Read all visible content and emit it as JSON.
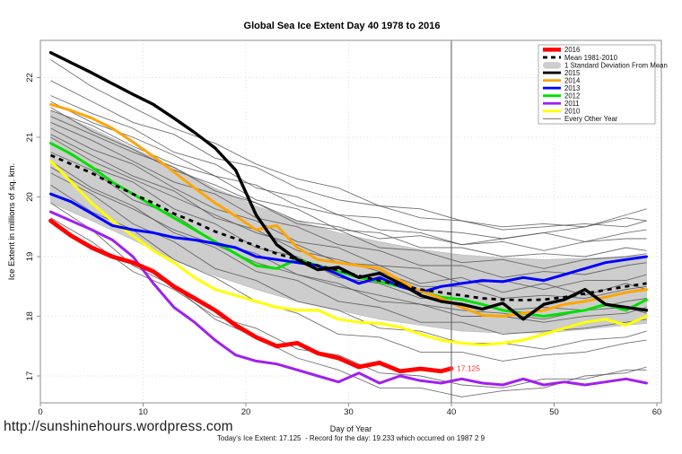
{
  "page": {
    "url_text": "http://sunshinehours.wordpress.com",
    "note": "Today's Ice Extent: 17.125  - Record for the day: 19.233 which occurred on 1987 2 9"
  },
  "chart_data": {
    "type": "line",
    "title": "Global Sea Ice Extent Day 40 1978 to 2016",
    "xlabel": "Day of Year",
    "ylabel": "Ice Extent in millions of sq. km.",
    "xlim": [
      0,
      60
    ],
    "ylim": [
      16.5,
      22.6
    ],
    "xticks": [
      0,
      10,
      20,
      30,
      40,
      50,
      60
    ],
    "yticks": [
      17,
      18,
      19,
      20,
      21,
      22
    ],
    "grid": "dotted",
    "grid_color": "#dddddd",
    "axis_color": "#8f8f8f",
    "vline": {
      "x": 40,
      "color": "#5a5a5a"
    },
    "annotation": {
      "x": 40,
      "y": 17.125,
      "label": "17.125",
      "color": "#ff3030"
    },
    "band": {
      "name": "1 Standard Deviation From Mean",
      "color": "#cdcdcd",
      "days": [
        1,
        5,
        9,
        13,
        17,
        21,
        25,
        29,
        33,
        37,
        41,
        45,
        49,
        53,
        57,
        59
      ],
      "upper": [
        21.45,
        21.15,
        20.82,
        20.5,
        20.15,
        19.85,
        19.6,
        19.4,
        19.25,
        19.12,
        19.03,
        18.98,
        18.95,
        18.97,
        19.0,
        19.02
      ],
      "lower": [
        19.9,
        19.6,
        19.28,
        18.95,
        18.68,
        18.45,
        18.25,
        18.1,
        17.95,
        17.85,
        17.75,
        17.72,
        17.72,
        17.78,
        17.85,
        17.88
      ]
    },
    "mean": {
      "name": "Mean 1981-2010",
      "color": "#000000",
      "style": "dashed",
      "days": [
        1,
        3,
        5,
        7,
        9,
        11,
        13,
        15,
        17,
        19,
        21,
        23,
        25,
        27,
        29,
        31,
        33,
        35,
        37,
        39,
        41,
        43,
        45,
        47,
        49,
        51,
        53,
        55,
        57,
        59
      ],
      "values": [
        20.7,
        20.55,
        20.4,
        20.22,
        20.05,
        19.9,
        19.72,
        19.58,
        19.42,
        19.3,
        19.18,
        19.05,
        18.95,
        18.85,
        18.77,
        18.68,
        18.6,
        18.52,
        18.45,
        18.4,
        18.35,
        18.3,
        18.28,
        18.27,
        18.28,
        18.32,
        18.38,
        18.44,
        18.5,
        18.55
      ]
    },
    "series": [
      {
        "name": "2010",
        "color": "#ffff00",
        "width": 3,
        "days": [
          1,
          3,
          5,
          7,
          9,
          11,
          13,
          15,
          17,
          19,
          21,
          23,
          25,
          27,
          29,
          31,
          33,
          35,
          37,
          39,
          41,
          43,
          45,
          47,
          49,
          51,
          53,
          55,
          57,
          59
        ],
        "values": [
          20.6,
          20.25,
          19.9,
          19.6,
          19.35,
          19.1,
          18.9,
          18.65,
          18.45,
          18.35,
          18.25,
          18.15,
          18.1,
          18.1,
          17.95,
          17.9,
          17.88,
          17.82,
          17.7,
          17.6,
          17.55,
          17.52,
          17.55,
          17.6,
          17.7,
          17.8,
          17.9,
          17.95,
          17.85,
          18.0
        ]
      },
      {
        "name": "2011",
        "color": "#a020f0",
        "width": 3,
        "days": [
          1,
          3,
          5,
          7,
          9,
          11,
          13,
          15,
          17,
          19,
          21,
          23,
          25,
          27,
          29,
          31,
          33,
          35,
          37,
          39,
          41,
          43,
          45,
          47,
          49,
          51,
          53,
          55,
          57,
          59
        ],
        "values": [
          19.75,
          19.6,
          19.45,
          19.28,
          19.0,
          18.55,
          18.15,
          17.9,
          17.6,
          17.35,
          17.25,
          17.2,
          17.1,
          17.0,
          16.9,
          17.05,
          16.88,
          17.0,
          16.92,
          16.88,
          16.95,
          16.88,
          16.85,
          16.95,
          16.85,
          16.9,
          16.85,
          16.9,
          16.95,
          16.88
        ]
      },
      {
        "name": "2012",
        "color": "#00e000",
        "width": 3,
        "days": [
          1,
          3,
          5,
          7,
          9,
          11,
          13,
          15,
          17,
          19,
          21,
          23,
          25,
          27,
          29,
          31,
          33,
          35,
          37,
          39,
          41,
          43,
          45,
          47,
          49,
          51,
          53,
          55,
          57,
          59
        ],
        "values": [
          20.9,
          20.72,
          20.5,
          20.25,
          20.05,
          19.85,
          19.65,
          19.45,
          19.25,
          19.05,
          18.85,
          18.8,
          18.95,
          18.85,
          18.75,
          18.65,
          18.58,
          18.5,
          18.42,
          18.32,
          18.28,
          18.2,
          18.1,
          18.05,
          18.0,
          18.05,
          18.1,
          18.2,
          18.1,
          18.28
        ]
      },
      {
        "name": "2013",
        "color": "#0000ff",
        "width": 3,
        "days": [
          1,
          3,
          5,
          7,
          9,
          11,
          13,
          15,
          17,
          19,
          21,
          23,
          25,
          27,
          29,
          31,
          33,
          35,
          37,
          39,
          41,
          43,
          45,
          47,
          49,
          51,
          53,
          55,
          57,
          59
        ],
        "values": [
          20.05,
          19.92,
          19.72,
          19.52,
          19.45,
          19.4,
          19.32,
          19.28,
          19.22,
          19.15,
          19.0,
          18.95,
          18.9,
          18.85,
          18.7,
          18.55,
          18.65,
          18.5,
          18.4,
          18.5,
          18.55,
          18.6,
          18.58,
          18.65,
          18.6,
          18.7,
          18.8,
          18.9,
          18.95,
          19.0
        ]
      },
      {
        "name": "2014",
        "color": "#ffa500",
        "width": 3,
        "days": [
          1,
          3,
          5,
          7,
          9,
          11,
          13,
          15,
          17,
          19,
          21,
          23,
          25,
          27,
          29,
          31,
          33,
          35,
          37,
          39,
          41,
          43,
          45,
          47,
          49,
          51,
          53,
          55,
          57,
          59
        ],
        "values": [
          21.55,
          21.45,
          21.32,
          21.15,
          20.92,
          20.68,
          20.42,
          20.15,
          19.9,
          19.68,
          19.45,
          19.52,
          19.15,
          18.95,
          18.9,
          18.85,
          18.8,
          18.6,
          18.42,
          18.3,
          18.15,
          18.02,
          18.0,
          18.05,
          18.1,
          18.2,
          18.25,
          18.32,
          18.4,
          18.45
        ]
      },
      {
        "name": "2015",
        "color": "#000000",
        "width": 3.4,
        "days": [
          1,
          3,
          5,
          7,
          9,
          11,
          13,
          15,
          17,
          19,
          21,
          23,
          25,
          27,
          29,
          31,
          33,
          35,
          37,
          39,
          41,
          43,
          45,
          47,
          49,
          51,
          53,
          55,
          57,
          59
        ],
        "values": [
          22.42,
          22.25,
          22.08,
          21.9,
          21.72,
          21.55,
          21.32,
          21.08,
          20.82,
          20.45,
          19.7,
          19.2,
          18.95,
          18.78,
          18.82,
          18.65,
          18.72,
          18.55,
          18.35,
          18.25,
          18.2,
          18.12,
          18.22,
          17.95,
          18.2,
          18.28,
          18.45,
          18.2,
          18.15,
          18.1
        ]
      },
      {
        "name": "2016",
        "color": "#ff0000",
        "width": 4.8,
        "days": [
          1,
          3,
          5,
          7,
          9,
          11,
          13,
          15,
          17,
          19,
          21,
          23,
          25,
          27,
          29,
          31,
          33,
          35,
          37,
          39,
          40
        ],
        "values": [
          19.6,
          19.35,
          19.15,
          19.0,
          18.9,
          18.75,
          18.5,
          18.3,
          18.1,
          17.85,
          17.65,
          17.5,
          17.55,
          17.38,
          17.3,
          17.15,
          17.22,
          17.08,
          17.12,
          17.08,
          17.125
        ]
      }
    ],
    "background_series": {
      "name": "Every Other Year",
      "color": "#4f4f4f",
      "width": 0.9,
      "days": [
        1,
        5,
        9,
        13,
        17,
        21,
        25,
        29,
        33,
        37,
        41,
        45,
        49,
        53,
        57,
        59
      ],
      "lines": [
        [
          21.5,
          21.1,
          20.8,
          20.45,
          20.2,
          19.9,
          19.6,
          19.5,
          19.3,
          19.35,
          19.2,
          19.3,
          19.4,
          19.5,
          19.7,
          19.8
        ],
        [
          22.3,
          21.85,
          21.5,
          21.15,
          20.9,
          20.55,
          20.3,
          20.15,
          19.85,
          19.8,
          19.6,
          19.5,
          19.55,
          19.5,
          19.65,
          19.6
        ],
        [
          21.95,
          21.6,
          21.25,
          21.05,
          20.65,
          20.5,
          20.15,
          19.95,
          19.85,
          19.65,
          19.6,
          19.45,
          19.5,
          19.55,
          19.5,
          19.6
        ],
        [
          21.7,
          21.4,
          21.15,
          20.75,
          20.55,
          20.15,
          20.0,
          19.7,
          19.65,
          19.45,
          19.4,
          19.3,
          19.4,
          19.25,
          19.4,
          19.45
        ],
        [
          21.6,
          21.25,
          21.0,
          20.7,
          20.35,
          20.2,
          19.85,
          19.7,
          19.45,
          19.4,
          19.2,
          19.25,
          19.1,
          19.25,
          19.3,
          19.3
        ],
        [
          21.45,
          21.2,
          20.85,
          20.55,
          20.35,
          19.95,
          19.8,
          19.45,
          19.4,
          19.15,
          19.15,
          19.0,
          19.05,
          19.0,
          19.15,
          19.1
        ],
        [
          21.35,
          21.05,
          20.75,
          20.5,
          20.1,
          19.9,
          19.55,
          19.45,
          19.15,
          19.1,
          18.9,
          18.95,
          18.8,
          18.95,
          19.0,
          19.05
        ],
        [
          21.25,
          20.95,
          20.6,
          20.25,
          20.05,
          19.65,
          19.5,
          19.2,
          19.1,
          18.85,
          18.85,
          18.65,
          18.75,
          18.7,
          18.85,
          18.9
        ],
        [
          21.15,
          20.8,
          20.55,
          20.15,
          19.8,
          19.6,
          19.25,
          19.15,
          18.85,
          18.8,
          18.55,
          18.6,
          18.45,
          18.6,
          18.6,
          18.7
        ],
        [
          21.05,
          20.7,
          20.35,
          20.1,
          19.65,
          19.45,
          19.1,
          18.95,
          18.75,
          18.5,
          18.5,
          18.3,
          18.35,
          18.3,
          18.45,
          18.5
        ],
        [
          20.9,
          20.5,
          20.25,
          19.8,
          19.55,
          19.15,
          19.0,
          18.65,
          18.55,
          18.3,
          18.3,
          18.1,
          18.15,
          18.1,
          18.25,
          18.3
        ],
        [
          20.75,
          20.45,
          19.95,
          19.7,
          19.25,
          19.05,
          18.7,
          18.55,
          18.25,
          18.2,
          18.0,
          18.0,
          17.9,
          18.0,
          18.05,
          18.15
        ],
        [
          20.6,
          20.15,
          19.85,
          19.4,
          19.15,
          18.75,
          18.6,
          18.25,
          18.15,
          17.9,
          17.9,
          17.7,
          17.75,
          17.8,
          17.9,
          17.95
        ],
        [
          20.4,
          20.05,
          19.55,
          19.25,
          18.8,
          18.6,
          18.25,
          18.1,
          17.8,
          17.75,
          17.55,
          17.55,
          17.45,
          17.6,
          17.65,
          17.75
        ],
        [
          20.2,
          19.75,
          19.45,
          18.95,
          18.65,
          18.25,
          18.05,
          17.7,
          17.65,
          17.4,
          17.4,
          17.25,
          17.35,
          17.4,
          17.55,
          17.6
        ],
        [
          19.9,
          19.45,
          18.85,
          18.5,
          17.95,
          17.65,
          17.3,
          17.1,
          16.8,
          16.8,
          16.65,
          16.75,
          16.8,
          17.0,
          17.05,
          17.15
        ],
        [
          19.65,
          19.25,
          18.75,
          18.45,
          18.0,
          17.8,
          17.45,
          17.35,
          17.05,
          17.0,
          16.85,
          16.8,
          16.95,
          16.95,
          17.1,
          17.1
        ],
        [
          21.0,
          20.6,
          20.3,
          20.0,
          19.7,
          19.4,
          19.2,
          18.9,
          18.85,
          18.55,
          18.65,
          18.4,
          18.55,
          18.35,
          18.55,
          18.45
        ],
        [
          20.5,
          20.1,
          19.8,
          19.45,
          19.2,
          18.9,
          18.7,
          18.5,
          18.35,
          18.2,
          18.1,
          18.05,
          17.95,
          18.1,
          18.15,
          18.05
        ]
      ]
    },
    "legend": {
      "position": "top-right",
      "items": [
        {
          "label": "2016",
          "swatch": "line",
          "color": "#ff0000",
          "width": 4.5
        },
        {
          "label": "Mean 1981-2010",
          "swatch": "dashed",
          "color": "#000000",
          "width": 2.8
        },
        {
          "label": "1 Standard Deviation From Mean",
          "swatch": "band",
          "color": "#cdcdcd",
          "width": 8
        },
        {
          "label": "2015",
          "swatch": "line",
          "color": "#000000",
          "width": 2.8
        },
        {
          "label": "2014",
          "swatch": "line",
          "color": "#ffa500",
          "width": 2.8
        },
        {
          "label": "2013",
          "swatch": "line",
          "color": "#0000ff",
          "width": 2.8
        },
        {
          "label": "2012",
          "swatch": "line",
          "color": "#00e000",
          "width": 2.8
        },
        {
          "label": "2011",
          "swatch": "line",
          "color": "#a020f0",
          "width": 2.8
        },
        {
          "label": "2010",
          "swatch": "line",
          "color": "#ffff00",
          "width": 2.8
        },
        {
          "label": "Every Other Year",
          "swatch": "line",
          "color": "#6e6e6e",
          "width": 1
        }
      ]
    }
  }
}
